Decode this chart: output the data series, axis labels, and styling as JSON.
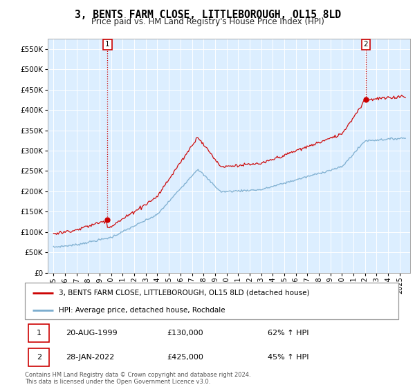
{
  "title": "3, BENTS FARM CLOSE, LITTLEBOROUGH, OL15 8LD",
  "subtitle": "Price paid vs. HM Land Registry's House Price Index (HPI)",
  "sale1_date": "20-AUG-1999",
  "sale1_price": 130000,
  "sale1_label": "1",
  "sale1_hpi": "62% ↑ HPI",
  "sale2_date": "28-JAN-2022",
  "sale2_price": 425000,
  "sale2_label": "2",
  "sale2_hpi": "45% ↑ HPI",
  "legend_red": "3, BENTS FARM CLOSE, LITTLEBOROUGH, OL15 8LD (detached house)",
  "legend_blue": "HPI: Average price, detached house, Rochdale",
  "footnote": "Contains HM Land Registry data © Crown copyright and database right 2024.\nThis data is licensed under the Open Government Licence v3.0.",
  "red_color": "#cc0000",
  "blue_color": "#7aacce",
  "bg_color": "#dceeff",
  "ylim": [
    0,
    575000
  ],
  "yticks": [
    0,
    50000,
    100000,
    150000,
    200000,
    250000,
    300000,
    350000,
    400000,
    450000,
    500000,
    550000
  ],
  "sale1_year": 1999.64,
  "sale2_year": 2022.08,
  "xmin": 1994.5,
  "xmax": 2025.9
}
